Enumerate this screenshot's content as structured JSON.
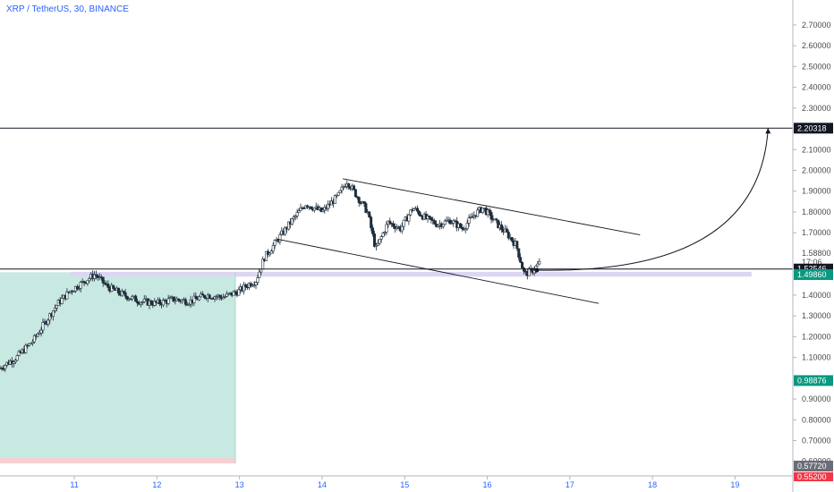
{
  "header": {
    "title": "XRP / TetherUS, 30, BINANCE"
  },
  "chart_data": {
    "type": "candlestick",
    "symbol": "XRP / TetherUS",
    "interval": "30",
    "exchange": "BINANCE",
    "ylim": [
      0.53,
      2.82
    ],
    "xlim": [
      10.1,
      19.7
    ],
    "y_ticks": [
      "2.70000",
      "2.60000",
      "2.50000",
      "2.40000",
      "2.30000",
      "2.10000",
      "2.00000",
      "1.90000",
      "1.80000",
      "1.70000",
      "1.40000",
      "1.30000",
      "1.20000",
      "1.10000",
      "0.90000",
      "0.80000",
      "0.70000",
      "0.60000"
    ],
    "y_tick_values": [
      2.7,
      2.6,
      2.5,
      2.4,
      2.3,
      2.1,
      2.0,
      1.9,
      1.8,
      1.7,
      1.4,
      1.3,
      1.2,
      1.1,
      0.9,
      0.8,
      0.7,
      0.6
    ],
    "x_ticks": [
      "11",
      "12",
      "13",
      "14",
      "15",
      "16",
      "17",
      "18",
      "19"
    ],
    "x_tick_values": [
      11,
      12,
      13,
      14,
      15,
      16,
      17,
      18,
      19
    ],
    "price_path": [
      [
        10.1,
        1.05
      ],
      [
        10.3,
        1.1
      ],
      [
        10.5,
        1.18
      ],
      [
        10.65,
        1.27
      ],
      [
        10.8,
        1.36
      ],
      [
        10.95,
        1.42
      ],
      [
        11.1,
        1.46
      ],
      [
        11.25,
        1.5
      ],
      [
        11.4,
        1.44
      ],
      [
        11.6,
        1.4
      ],
      [
        11.8,
        1.37
      ],
      [
        12.0,
        1.36
      ],
      [
        12.2,
        1.38
      ],
      [
        12.4,
        1.37
      ],
      [
        12.6,
        1.4
      ],
      [
        12.8,
        1.39
      ],
      [
        13.0,
        1.42
      ],
      [
        13.1,
        1.45
      ],
      [
        13.2,
        1.47
      ],
      [
        13.3,
        1.58
      ],
      [
        13.45,
        1.66
      ],
      [
        13.6,
        1.74
      ],
      [
        13.8,
        1.84
      ],
      [
        14.0,
        1.8
      ],
      [
        14.2,
        1.88
      ],
      [
        14.3,
        1.95
      ],
      [
        14.45,
        1.86
      ],
      [
        14.55,
        1.8
      ],
      [
        14.65,
        1.62
      ],
      [
        14.8,
        1.75
      ],
      [
        14.95,
        1.72
      ],
      [
        15.1,
        1.82
      ],
      [
        15.25,
        1.77
      ],
      [
        15.4,
        1.74
      ],
      [
        15.55,
        1.76
      ],
      [
        15.7,
        1.72
      ],
      [
        15.85,
        1.79
      ],
      [
        15.95,
        1.82
      ],
      [
        16.1,
        1.75
      ],
      [
        16.25,
        1.69
      ],
      [
        16.35,
        1.64
      ],
      [
        16.45,
        1.5
      ],
      [
        16.55,
        1.52
      ],
      [
        16.65,
        1.56
      ]
    ],
    "lines": [
      {
        "type": "horizontal",
        "value": 2.20318,
        "label": "2.20318"
      },
      {
        "type": "horizontal",
        "value": 1.52546,
        "label": "1.52546"
      },
      {
        "type": "channel_upper",
        "points": [
          [
            14.25,
            1.96
          ],
          [
            17.85,
            1.69
          ]
        ]
      },
      {
        "type": "channel_lower",
        "points": [
          [
            13.45,
            1.67
          ],
          [
            17.35,
            1.36
          ]
        ]
      },
      {
        "type": "projection_curve",
        "points": [
          [
            16.6,
            1.52
          ],
          [
            19.4,
            2.20318
          ]
        ]
      }
    ],
    "zones": [
      {
        "type": "long_position_profit",
        "x": [
          10.0,
          12.95
        ],
        "y": [
          0.62,
          1.51
        ],
        "color": "#c7e9e1"
      },
      {
        "type": "long_position_stop",
        "x": [
          10.0,
          12.95
        ],
        "y": [
          0.59,
          0.62
        ],
        "color": "#f6d1d4"
      },
      {
        "type": "support_band",
        "x": [
          10.95,
          19.2
        ],
        "y": [
          1.489,
          1.512
        ],
        "color": "#dcd6f3"
      }
    ],
    "price_badges": [
      {
        "value": 2.20318,
        "text": "2.20318",
        "style": "black"
      },
      {
        "value": 1.52546,
        "text": "1.52546",
        "style": "black"
      },
      {
        "value": 1.4986,
        "text": "1.49860",
        "style": "green"
      },
      {
        "value": 0.98876,
        "text": "0.98876",
        "style": "green"
      },
      {
        "value": 0.5772,
        "text": "0.57720",
        "style": "gray"
      }
    ],
    "price_label": {
      "value": "1.58800",
      "countdown": "17:06"
    },
    "partial_badge_text": "0.55200",
    "colors": {
      "accent": "#2962ff",
      "green": "#089981",
      "candle": "#1f2d3a",
      "line": "#131722"
    }
  }
}
